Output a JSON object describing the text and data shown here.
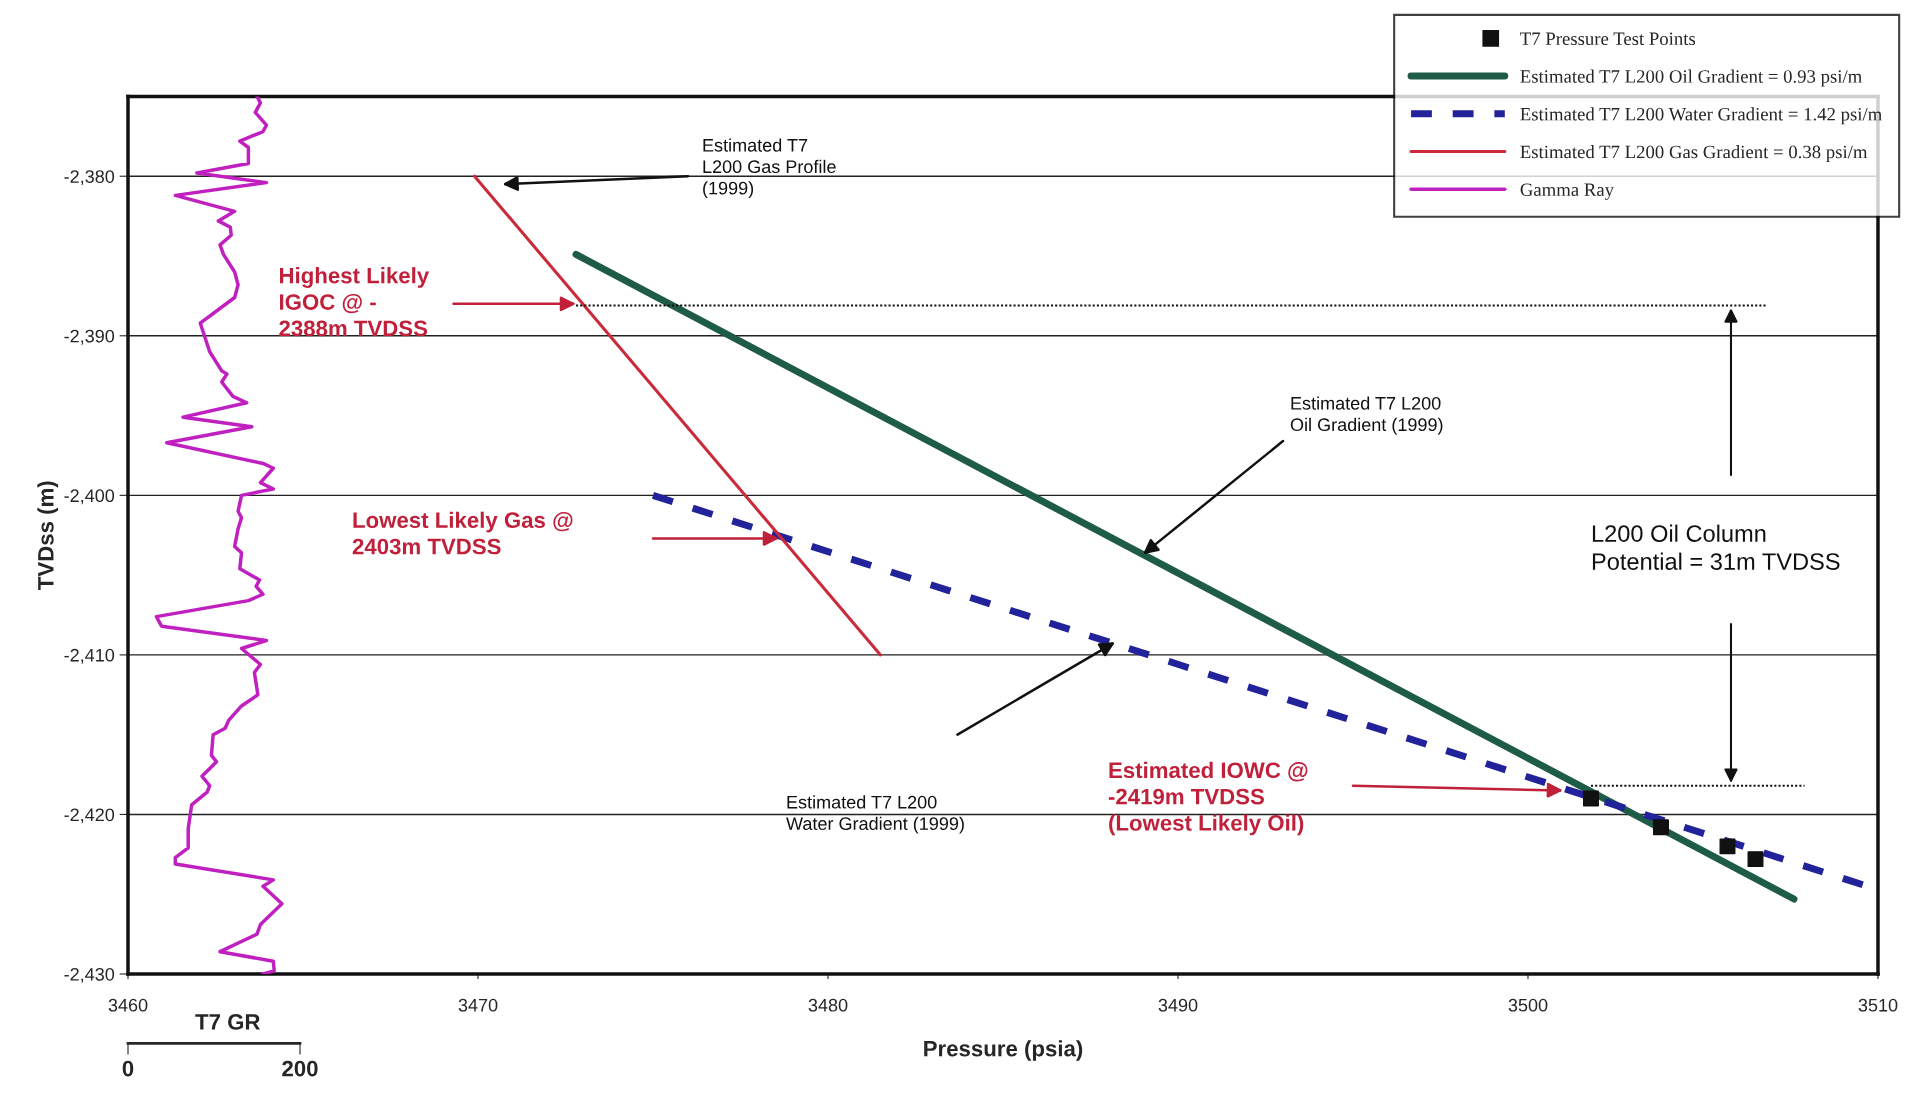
{
  "chart_data": {
    "type": "line",
    "xlabel": "Pressure (psia)",
    "ylabel": "TVDss (m)",
    "x2label": "T7 GR",
    "xlim": [
      3460,
      3510
    ],
    "xticks": [
      3460,
      3470,
      3480,
      3490,
      3500,
      3510
    ],
    "ylim": [
      -2430,
      -2375
    ],
    "yticks": [
      {
        "value": -2380,
        "label": "-2,380"
      },
      {
        "value": -2390,
        "label": "-2,390"
      },
      {
        "value": -2400,
        "label": "-2,400"
      },
      {
        "value": -2410,
        "label": "-2,410"
      },
      {
        "value": -2420,
        "label": "-2,420"
      },
      {
        "value": -2430,
        "label": "-2,430"
      }
    ],
    "x2lim": [
      0,
      2035
    ],
    "x2ticks": [
      0,
      200
    ],
    "grid": "y",
    "legend": "top right",
    "series": [
      {
        "name": "T7 Pressure Test Points",
        "type": "scatter",
        "marker": "square",
        "color": "#111111",
        "x": [
          3501.8,
          3503.8,
          3505.7,
          3506.5
        ],
        "values": [
          -2419.0,
          -2420.8,
          -2422.0,
          -2422.8
        ]
      },
      {
        "name": "Estimated T7 L200 Oil Gradient = 0.93 psi/m",
        "color": "#1f5c48",
        "line_style": "solid",
        "x": [
          3472.8,
          3507.6
        ],
        "values": [
          -2384.9,
          -2425.3
        ]
      },
      {
        "name": "Estimated T7 L200 Water Gradient = 1.42 psi/m",
        "color": "#22229a",
        "line_style": "dashed",
        "x": [
          3475.0,
          3509.7
        ],
        "values": [
          -2400.0,
          -2424.5
        ]
      },
      {
        "name": "Estimated T7 L200 Gas Gradient = 0.38 psi/m",
        "color": "#cc2a3a",
        "line_style": "solid",
        "x": [
          3469.9,
          3481.5
        ],
        "values": [
          -2380.0,
          -2410.0
        ]
      },
      {
        "name": "Gamma Ray",
        "axis": "x2",
        "color": "#c020c0",
        "line_style": "solid",
        "x": [
          150,
          154,
          148,
          161,
          157,
          130,
          140,
          140,
          80,
          161,
          55,
          124,
          105,
          119,
          120,
          107,
          111,
          124,
          128,
          124,
          84,
          95,
          109,
          115,
          109,
          122,
          138,
          64,
          144,
          45,
          157,
          169,
          154,
          169,
          132,
          128,
          132,
          128,
          124,
          132,
          130,
          153,
          149,
          157,
          140,
          33,
          39,
          161,
          132,
          154,
          147,
          151,
          132,
          117,
          113,
          99,
          97,
          103,
          86,
          95,
          92,
          74,
          70,
          70,
          55,
          55,
          169,
          157,
          179,
          154,
          150,
          107,
          169,
          170,
          157
        ],
        "values": [
          -2375.0,
          -2375.4,
          -2376.0,
          -2376.8,
          -2377.2,
          -2377.8,
          -2378.2,
          -2379.2,
          -2379.8,
          -2380.4,
          -2381.2,
          -2382.2,
          -2382.8,
          -2383.2,
          -2383.7,
          -2384.3,
          -2384.9,
          -2386.0,
          -2386.8,
          -2387.6,
          -2389.2,
          -2391.0,
          -2392.2,
          -2392.4,
          -2392.9,
          -2393.8,
          -2394.2,
          -2395.1,
          -2395.7,
          -2396.7,
          -2398.0,
          -2398.3,
          -2399.2,
          -2399.6,
          -2400.0,
          -2401.0,
          -2401.4,
          -2402.1,
          -2403.2,
          -2403.6,
          -2404.6,
          -2405.3,
          -2405.7,
          -2406.2,
          -2406.6,
          -2407.6,
          -2408.2,
          -2409.1,
          -2409.6,
          -2410.6,
          -2411.1,
          -2412.5,
          -2413.2,
          -2414.1,
          -2414.6,
          -2415.0,
          -2416.3,
          -2416.7,
          -2417.6,
          -2418.2,
          -2418.6,
          -2419.4,
          -2420.9,
          -2422.1,
          -2422.7,
          -2423.1,
          -2424.1,
          -2424.5,
          -2425.6,
          -2426.9,
          -2427.5,
          -2428.6,
          -2429.2,
          -2429.8,
          -2430.0
        ]
      },
      {
        "color": "#111111",
        "line_style": "dotted",
        "x": [
          3472.8,
          3506.8
        ],
        "values": [
          -2388.1,
          -2388.1
        ]
      },
      {
        "color": "#111111",
        "line_style": "dotted",
        "x": [
          3501.8,
          3507.9
        ],
        "values": [
          -2418.2,
          -2418.2
        ]
      }
    ],
    "annotations": [
      "Estimated T7\nL200 Gas Profile\n(1999)",
      "Highest Likely\nIGOC @ -\n2388m TVDSS",
      "Lowest Likely Gas @\n2403m TVDSS",
      {
        "text": "Estimated T7 L200\nOil Gradient (1999)",
        "x": 3489.0,
        "y": -2403.7
      },
      "Estimated T7 L200\nWater Gradient (1999)",
      "Estimated IOWC @\n-2419m TVDSS\n(Lowest Likely Oil)",
      "L200 Oil Column\nPotential = 31m TVDSS"
    ]
  }
}
